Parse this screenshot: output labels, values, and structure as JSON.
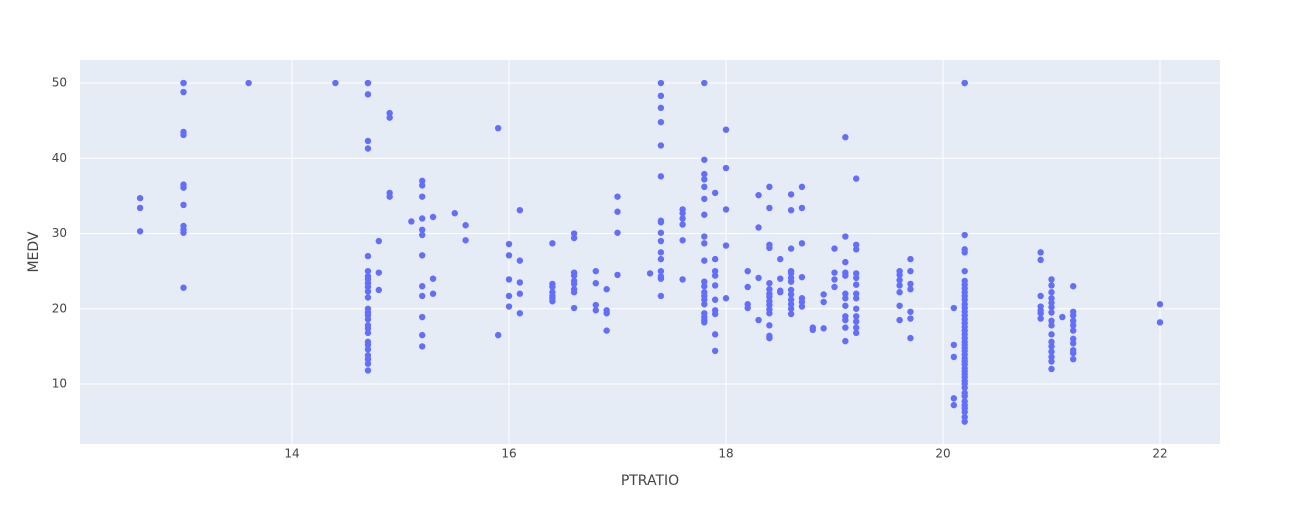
{
  "chart_data": {
    "type": "scatter",
    "x_label": "PTRATIO",
    "y_label": "MEDV",
    "color": "#636efa",
    "grid": true,
    "xlim": [
      12.046,
      22.553
    ],
    "ylim": [
      2.03,
      53.06
    ],
    "xticks": [
      14,
      16,
      18,
      20,
      22
    ],
    "yticks": [
      10,
      20,
      30,
      40,
      50
    ],
    "x": [
      12.6,
      12.6,
      12.6,
      13,
      13,
      13,
      13,
      13,
      13,
      13,
      13,
      13,
      13,
      13,
      13,
      13.6,
      14.4,
      14.7,
      14.7,
      14.7,
      14.7,
      14.7,
      14.7,
      14.7,
      14.7,
      14.7,
      14.7,
      14.7,
      14.7,
      14.7,
      14.7,
      14.7,
      14.7,
      14.7,
      14.7,
      14.7,
      14.7,
      14.7,
      14.7,
      14.7,
      14.7,
      14.7,
      14.7,
      14.7,
      14.8,
      14.8,
      14.8,
      14.9,
      14.9,
      14.9,
      14.9,
      15.1,
      15.2,
      15.2,
      15.2,
      15.2,
      15.2,
      15.2,
      15.2,
      15.2,
      15.2,
      15.2,
      15.2,
      15.2,
      15.3,
      15.3,
      15.3,
      15.5,
      15.6,
      15.6,
      15.9,
      15.9,
      16,
      16,
      16,
      16,
      16,
      16.1,
      16.1,
      16.1,
      16.1,
      16.1,
      16.4,
      16.4,
      16.4,
      16.4,
      16.4,
      16.4,
      16.4,
      16.6,
      16.6,
      16.6,
      16.6,
      16.6,
      16.6,
      16.6,
      16.6,
      16.6,
      16.8,
      16.8,
      16.8,
      16.8,
      16.9,
      16.9,
      16.9,
      16.9,
      17,
      17,
      17,
      17,
      17.3,
      17.4,
      17.4,
      17.4,
      17.4,
      17.4,
      17.4,
      17.4,
      17.4,
      17.4,
      17.4,
      17.4,
      17.4,
      17.4,
      17.4,
      17.4,
      17.4,
      17.6,
      17.6,
      17.6,
      17.6,
      17.6,
      17.6,
      17.8,
      17.8,
      17.8,
      17.8,
      17.8,
      17.8,
      17.8,
      17.8,
      17.8,
      17.8,
      17.8,
      17.8,
      17.8,
      17.8,
      17.8,
      17.8,
      17.8,
      17.8,
      17.8,
      17.8,
      17.9,
      17.9,
      17.9,
      17.9,
      17.9,
      17.9,
      17.9,
      17.9,
      17.9,
      17.9,
      18,
      18,
      18,
      18,
      18,
      18.2,
      18.2,
      18.2,
      18.2,
      18.3,
      18.3,
      18.3,
      18.3,
      18.4,
      18.4,
      18.4,
      18.4,
      18.4,
      18.4,
      18.4,
      18.4,
      18.4,
      18.4,
      18.4,
      18.4,
      18.4,
      18.4,
      18.4,
      18.5,
      18.5,
      18.5,
      18.5,
      18.6,
      18.6,
      18.6,
      18.6,
      18.6,
      18.6,
      18.6,
      18.6,
      18.6,
      18.6,
      18.6,
      18.6,
      18.6,
      18.7,
      18.7,
      18.7,
      18.7,
      18.7,
      18.7,
      18.7,
      18.8,
      18.8,
      18.9,
      18.9,
      18.9,
      19,
      19,
      19,
      19,
      19.1,
      19.1,
      19.1,
      19.1,
      19.1,
      19.1,
      19.1,
      19.1,
      19.1,
      19.1,
      19.1,
      19.1,
      19.2,
      19.2,
      19.2,
      19.2,
      19.2,
      19.2,
      19.2,
      19.2,
      19.2,
      19.2,
      19.2,
      19.2,
      19.2,
      19.6,
      19.6,
      19.6,
      19.6,
      19.6,
      19.6,
      19.6,
      19.7,
      19.7,
      19.7,
      19.7,
      19.7,
      19.7,
      19.7,
      20.1,
      20.1,
      20.1,
      20.1,
      20.1,
      20.2,
      20.2,
      20.2,
      20.2,
      20.2,
      20.2,
      20.2,
      20.2,
      20.2,
      20.2,
      20.2,
      20.2,
      20.2,
      20.2,
      20.2,
      20.2,
      20.2,
      20.2,
      20.2,
      20.2,
      20.2,
      20.2,
      20.2,
      20.2,
      20.2,
      20.2,
      20.2,
      20.2,
      20.2,
      20.2,
      20.2,
      20.2,
      20.2,
      20.2,
      20.2,
      20.2,
      20.2,
      20.2,
      20.2,
      20.2,
      20.2,
      20.2,
      20.2,
      20.2,
      20.2,
      20.9,
      20.9,
      20.9,
      20.9,
      20.9,
      20.9,
      20.9,
      21,
      21,
      21,
      21,
      21,
      21,
      21,
      21,
      21,
      21,
      21,
      21,
      21,
      21,
      21,
      21,
      21.1,
      21.2,
      21.2,
      21.2,
      21.2,
      21.2,
      21.2,
      21.2,
      21.2,
      21.2,
      21.2,
      21.2,
      22,
      22
    ],
    "values": [
      34.7,
      33.4,
      30.3,
      50,
      50,
      48.8,
      43.5,
      43.1,
      36.5,
      36.1,
      33.8,
      31,
      30.5,
      30.1,
      22.8,
      50,
      50,
      50,
      50,
      48.5,
      42.3,
      41.3,
      27,
      25,
      24.3,
      23.9,
      23.4,
      22.9,
      22.3,
      21.5,
      20,
      19.5,
      19.1,
      18.6,
      17.8,
      17.4,
      16.8,
      15.6,
      15.2,
      14.6,
      13.8,
      13.3,
      12.7,
      11.8,
      29,
      24.8,
      22.5,
      46,
      45.4,
      35.4,
      34.9,
      31.6,
      37,
      36.4,
      34.9,
      32,
      30.5,
      29.8,
      27.1,
      23,
      21.7,
      18.9,
      16.5,
      15,
      32.2,
      24,
      22,
      32.7,
      31.1,
      29.1,
      44,
      16.5,
      28.6,
      27.1,
      23.9,
      21.7,
      20.3,
      33.1,
      26.4,
      23.5,
      22,
      19.4,
      28.7,
      23.3,
      22.9,
      22.2,
      21.7,
      21.4,
      21,
      30,
      29.4,
      24.8,
      24.4,
      23.7,
      23.3,
      22.6,
      22.2,
      20.1,
      25,
      23.4,
      20.5,
      19.8,
      22.6,
      19.8,
      19.4,
      17.1,
      34.9,
      32.9,
      30.1,
      24.5,
      24.7,
      50,
      48.3,
      46.7,
      44.8,
      41.7,
      37.6,
      31.7,
      31.5,
      30.1,
      29,
      27.5,
      26.6,
      25,
      24.3,
      24,
      21.7,
      33.2,
      32.7,
      32,
      31.2,
      29.1,
      23.9,
      50,
      39.8,
      37.9,
      37.2,
      36.2,
      34.6,
      32.5,
      29.6,
      28.7,
      26.4,
      23.6,
      23,
      22.2,
      21.7,
      21.2,
      20.6,
      19.4,
      18.9,
      18.5,
      18.2,
      35.4,
      26.6,
      25,
      24.4,
      23.1,
      21.2,
      19.8,
      19.3,
      16.6,
      14.4,
      43.8,
      38.7,
      33.2,
      28.4,
      21.4,
      25,
      22.9,
      20.6,
      20.1,
      35.1,
      30.8,
      24.1,
      18.5,
      36.2,
      33.4,
      28.5,
      28.1,
      23.4,
      22.6,
      22,
      21.6,
      21,
      20.5,
      19.9,
      19.4,
      17.8,
      16.4,
      16.1,
      26.6,
      24,
      22.4,
      22.2,
      35.2,
      33.1,
      28,
      25,
      24.7,
      24.1,
      23.6,
      22.5,
      21.9,
      21.2,
      20.6,
      20,
      19.3,
      36.2,
      33.4,
      28.7,
      24.2,
      21.4,
      20.9,
      20.3,
      17.5,
      17.2,
      21.9,
      20.9,
      17.4,
      28,
      24.8,
      23.9,
      22.9,
      42.8,
      29.6,
      26.2,
      24.8,
      24.4,
      22,
      21.4,
      20.4,
      19,
      18.5,
      17.5,
      15.7,
      37.3,
      28.5,
      27.9,
      24.7,
      24.1,
      23.2,
      22,
      21.4,
      20,
      19,
      18.3,
      17.5,
      16.8,
      25,
      24.5,
      23.8,
      23.1,
      22.2,
      20.4,
      18.5,
      26.6,
      25,
      23.3,
      22.6,
      19.6,
      18.7,
      16.1,
      20.1,
      15.2,
      13.6,
      8.1,
      7.2,
      50,
      50,
      29.8,
      27.9,
      27.5,
      25,
      23.7,
      23.2,
      22.7,
      22.2,
      21.7,
      21.2,
      20.6,
      20.1,
      19.6,
      19.1,
      18.6,
      18.1,
      17.6,
      17.1,
      16.6,
      16.1,
      15.6,
      15.2,
      14.8,
      14.4,
      13.9,
      13.4,
      13,
      12.6,
      12.1,
      11.7,
      11.3,
      10.9,
      10.4,
      10,
      9.5,
      8.8,
      8.4,
      7.7,
      7.2,
      6.8,
      6.3,
      5.6,
      5,
      27.5,
      26.5,
      21.7,
      20.3,
      19.8,
      19.4,
      18.7,
      23.9,
      23.1,
      22.2,
      21.4,
      20.8,
      20.2,
      19.5,
      18.4,
      17.8,
      16.6,
      15.6,
      15,
      14.3,
      13.6,
      13,
      12,
      18.9,
      23,
      19.6,
      19.1,
      18.4,
      17.8,
      17.1,
      16,
      15.4,
      14.5,
      14.1,
      13.3,
      20.6,
      18.2
    ]
  }
}
